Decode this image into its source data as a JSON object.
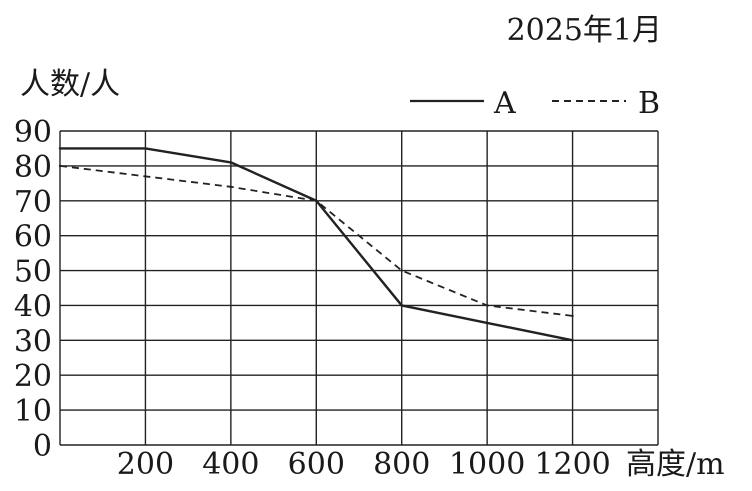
{
  "chart_data": {
    "type": "line",
    "title": "2025年1月",
    "ylabel": "人数/人",
    "xlabel": "高度/m",
    "x": [
      0,
      200,
      400,
      600,
      800,
      1000,
      1200
    ],
    "x_tick_labels": [
      "200",
      "400",
      "600",
      "800",
      "1000",
      "1200"
    ],
    "y_tick_labels": [
      "0",
      "10",
      "20",
      "30",
      "40",
      "50",
      "60",
      "70",
      "80",
      "90"
    ],
    "xlim": [
      0,
      1400
    ],
    "ylim": [
      0,
      90
    ],
    "grid": true,
    "legend_position": "top-right",
    "series": [
      {
        "name": "A",
        "style": "solid",
        "color": "#222222",
        "values": [
          85,
          85,
          81,
          70,
          40,
          35,
          30
        ]
      },
      {
        "name": "B",
        "style": "dashed",
        "color": "#222222",
        "values": [
          80,
          77,
          74,
          70,
          50,
          40,
          37
        ]
      }
    ]
  }
}
